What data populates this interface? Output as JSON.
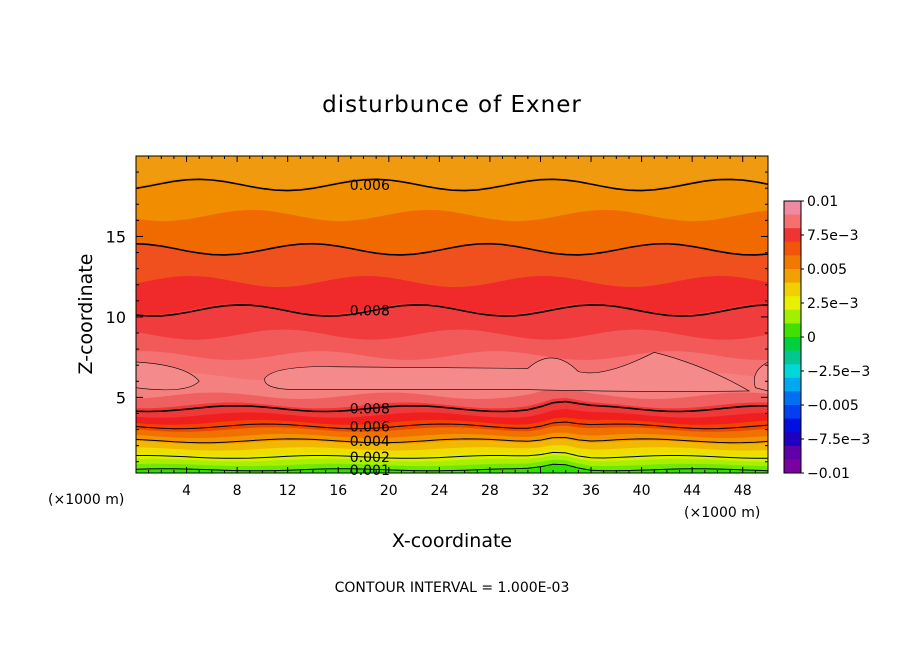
{
  "chart_data": {
    "type": "heatmap",
    "title": "disturbunce of Exner",
    "xlabel": "X-coordinate",
    "ylabel": "Z-coordinate",
    "x_unit_left": "(×1000 m)",
    "x_unit_right": "(×1000 m)",
    "footer": "CONTOUR INTERVAL = 1.000E-03",
    "xlim": [
      0,
      50
    ],
    "ylim": [
      0.3,
      20
    ],
    "x_ticks": [
      "4",
      "8",
      "12",
      "16",
      "20",
      "24",
      "28",
      "32",
      "36",
      "40",
      "44",
      "48"
    ],
    "x_tick_values": [
      4,
      8,
      12,
      16,
      20,
      24,
      28,
      32,
      36,
      40,
      44,
      48
    ],
    "y_ticks": [
      "5",
      "10",
      "15"
    ],
    "y_tick_values": [
      5,
      10,
      15
    ],
    "colorbar": {
      "range": [
        -0.01,
        0.01
      ],
      "labels": [
        "0.01",
        "7.5e−3",
        "0.005",
        "2.5e−3",
        "0",
        "−2.5e−3",
        "−0.005",
        "−7.5e−3",
        "−0.01"
      ],
      "label_values": [
        0.01,
        0.0075,
        0.005,
        0.0025,
        0,
        -0.0025,
        -0.005,
        -0.0075,
        -0.01
      ],
      "colors": [
        "#f08aa0",
        "#f4716f",
        "#f03434",
        "#f0550a",
        "#f07a00",
        "#f0a000",
        "#f0d000",
        "#e6f000",
        "#a0f000",
        "#40e000",
        "#00d040",
        "#00c890",
        "#00d8d8",
        "#00a8f0",
        "#0070f0",
        "#0040f0",
        "#0010e0",
        "#2000c0",
        "#6000a8",
        "#7a00a0"
      ]
    },
    "contour_labels": [
      {
        "text": "0.006",
        "x": 18.5,
        "z": 18.2
      },
      {
        "text": "0.008",
        "x": 18.5,
        "z": 10.4
      },
      {
        "text": "0.008",
        "x": 18.5,
        "z": 4.3
      },
      {
        "text": "0.006",
        "x": 18.5,
        "z": 3.2
      },
      {
        "text": "0.004",
        "x": 18.5,
        "z": 2.3
      },
      {
        "text": "0.002",
        "x": 18.5,
        "z": 1.3
      },
      {
        "text": "0.001",
        "x": 18.5,
        "z": 0.5
      }
    ],
    "bands": [
      {
        "color": "#f08e00",
        "z": 18.3
      },
      {
        "color": "#f06a00",
        "z": 16.3
      },
      {
        "color": "#f0501e",
        "z": 14.2
      },
      {
        "color": "#f02a2a",
        "z": 12.2
      },
      {
        "color": "#f03c3c",
        "z": 10.5
      },
      {
        "color": "#f25a5a",
        "z": 8.9
      },
      {
        "color": "#f47272",
        "z": 7.6
      },
      {
        "color": "#f58080",
        "z": 6.3
      },
      {
        "color": "#f06060",
        "z": 5.1
      },
      {
        "color": "#f03838",
        "z": 4.5
      },
      {
        "color": "#f01e1e",
        "z": 3.9
      },
      {
        "color": "#f04400",
        "z": 3.45
      },
      {
        "color": "#f07000",
        "z": 3.0
      },
      {
        "color": "#f09400",
        "z": 2.6
      },
      {
        "color": "#f0b800",
        "z": 2.2
      },
      {
        "color": "#f0dc00",
        "z": 1.8
      },
      {
        "color": "#d8f000",
        "z": 1.45
      },
      {
        "color": "#a8f000",
        "z": 1.1
      },
      {
        "color": "#70e800",
        "z": 0.8
      },
      {
        "color": "#30e000",
        "z": 0.5
      }
    ],
    "contour_lines": [
      18.2,
      14.2,
      10.4,
      4.3,
      3.2,
      2.3,
      1.3,
      0.5
    ]
  }
}
